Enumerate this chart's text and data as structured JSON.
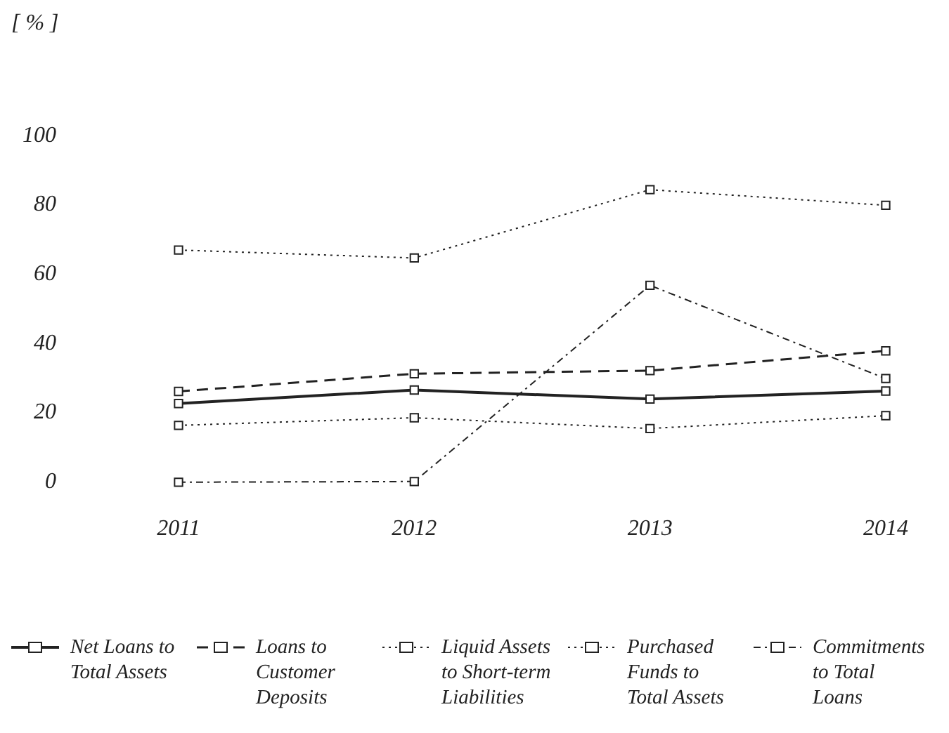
{
  "chart_data": {
    "type": "line",
    "ylabel": "[ % ]",
    "categories": [
      "2011",
      "2012",
      "2013",
      "2014"
    ],
    "ylim": [
      0,
      100
    ],
    "yticks": [
      0,
      20,
      40,
      60,
      80,
      100
    ],
    "grid": false,
    "legend": "bottom",
    "marker": "square",
    "series": [
      {
        "name": "Net Loans to Total Assets",
        "color": "#222222",
        "line_style": "solid",
        "values": [
          22.7,
          26.6,
          24,
          26.3
        ]
      },
      {
        "name": "Loans to Customer Deposits",
        "color": "#222222",
        "line_style": "dashed",
        "values": [
          26.2,
          31.3,
          32.2,
          37.9
        ]
      },
      {
        "name": "Liquid Assets to Short-term Liabilities",
        "color": "#222222",
        "line_style": "dotted",
        "values": [
          67,
          64.7,
          84.4,
          79.9
        ]
      },
      {
        "name": "Purchased Funds to Total Assets",
        "color": "#222222",
        "line_style": "dotted",
        "values": [
          16.4,
          18.6,
          15.5,
          19.2
        ]
      },
      {
        "name": "Commitments to Total Loans",
        "color": "#222222",
        "line_style": "dashdot",
        "values": [
          0,
          0.2,
          56.8,
          29.9
        ]
      }
    ]
  }
}
